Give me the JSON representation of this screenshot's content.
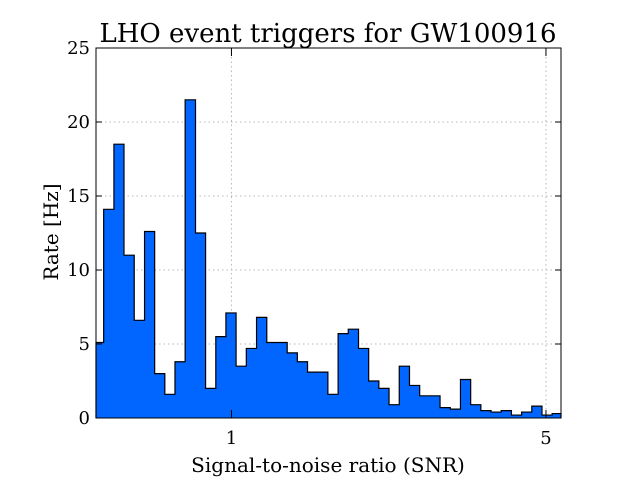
{
  "chart_data": {
    "type": "histogram",
    "title": "LHO event triggers for GW100916",
    "xlabel": "Signal-to-noise ratio (SNR)",
    "ylabel": "Rate [Hz]",
    "xscale": "log",
    "xlim": [
      0.5,
      5.4
    ],
    "ylim": [
      0,
      25
    ],
    "grid": true,
    "bar_color": "#0066ff",
    "edge_color": "#000000",
    "xticks": [
      1,
      5
    ],
    "xtick_labels": [
      "1",
      "5"
    ],
    "yticks": [
      0,
      5,
      10,
      15,
      20,
      25
    ],
    "ytick_labels": [
      "0",
      "5",
      "10",
      "15",
      "20",
      "25"
    ],
    "bins": [
      {
        "x0": 0.5,
        "x1": 0.52,
        "y": 5.1
      },
      {
        "x0": 0.52,
        "x1": 0.548,
        "y": 14.1
      },
      {
        "x0": 0.548,
        "x1": 0.577,
        "y": 18.5
      },
      {
        "x0": 0.577,
        "x1": 0.608,
        "y": 11.0
      },
      {
        "x0": 0.608,
        "x1": 0.641,
        "y": 6.6
      },
      {
        "x0": 0.641,
        "x1": 0.675,
        "y": 12.6
      },
      {
        "x0": 0.675,
        "x1": 0.711,
        "y": 3.0
      },
      {
        "x0": 0.711,
        "x1": 0.749,
        "y": 1.6
      },
      {
        "x0": 0.749,
        "x1": 0.789,
        "y": 3.8
      },
      {
        "x0": 0.789,
        "x1": 0.832,
        "y": 21.5
      },
      {
        "x0": 0.832,
        "x1": 0.876,
        "y": 12.5
      },
      {
        "x0": 0.876,
        "x1": 0.923,
        "y": 2.0
      },
      {
        "x0": 0.923,
        "x1": 0.972,
        "y": 5.5
      },
      {
        "x0": 0.972,
        "x1": 1.024,
        "y": 7.1
      },
      {
        "x0": 1.024,
        "x1": 1.079,
        "y": 3.5
      },
      {
        "x0": 1.079,
        "x1": 1.137,
        "y": 4.7
      },
      {
        "x0": 1.137,
        "x1": 1.198,
        "y": 6.8
      },
      {
        "x0": 1.198,
        "x1": 1.262,
        "y": 5.1
      },
      {
        "x0": 1.262,
        "x1": 1.33,
        "y": 5.1
      },
      {
        "x0": 1.33,
        "x1": 1.401,
        "y": 4.4
      },
      {
        "x0": 1.401,
        "x1": 1.476,
        "y": 3.8
      },
      {
        "x0": 1.476,
        "x1": 1.555,
        "y": 3.1
      },
      {
        "x0": 1.555,
        "x1": 1.638,
        "y": 3.1
      },
      {
        "x0": 1.638,
        "x1": 1.726,
        "y": 1.6
      },
      {
        "x0": 1.726,
        "x1": 1.818,
        "y": 5.7
      },
      {
        "x0": 1.818,
        "x1": 1.916,
        "y": 6.0
      },
      {
        "x0": 1.916,
        "x1": 2.018,
        "y": 4.7
      },
      {
        "x0": 2.018,
        "x1": 2.126,
        "y": 2.5
      },
      {
        "x0": 2.126,
        "x1": 2.24,
        "y": 2.0
      },
      {
        "x0": 2.24,
        "x1": 2.36,
        "y": 0.9
      },
      {
        "x0": 2.36,
        "x1": 2.487,
        "y": 3.5
      },
      {
        "x0": 2.487,
        "x1": 2.62,
        "y": 2.2
      },
      {
        "x0": 2.62,
        "x1": 2.76,
        "y": 1.5
      },
      {
        "x0": 2.76,
        "x1": 2.908,
        "y": 1.5
      },
      {
        "x0": 2.908,
        "x1": 3.064,
        "y": 0.7
      },
      {
        "x0": 3.064,
        "x1": 3.228,
        "y": 0.6
      },
      {
        "x0": 3.228,
        "x1": 3.401,
        "y": 2.6
      },
      {
        "x0": 3.401,
        "x1": 3.583,
        "y": 0.9
      },
      {
        "x0": 3.583,
        "x1": 3.775,
        "y": 0.5
      },
      {
        "x0": 3.775,
        "x1": 3.977,
        "y": 0.4
      },
      {
        "x0": 3.977,
        "x1": 4.19,
        "y": 0.5
      },
      {
        "x0": 4.19,
        "x1": 4.414,
        "y": 0.2
      },
      {
        "x0": 4.414,
        "x1": 4.65,
        "y": 0.4
      },
      {
        "x0": 4.65,
        "x1": 4.899,
        "y": 0.8
      },
      {
        "x0": 4.899,
        "x1": 5.161,
        "y": 0.2
      },
      {
        "x0": 5.161,
        "x1": 5.4,
        "y": 0.3
      }
    ]
  }
}
